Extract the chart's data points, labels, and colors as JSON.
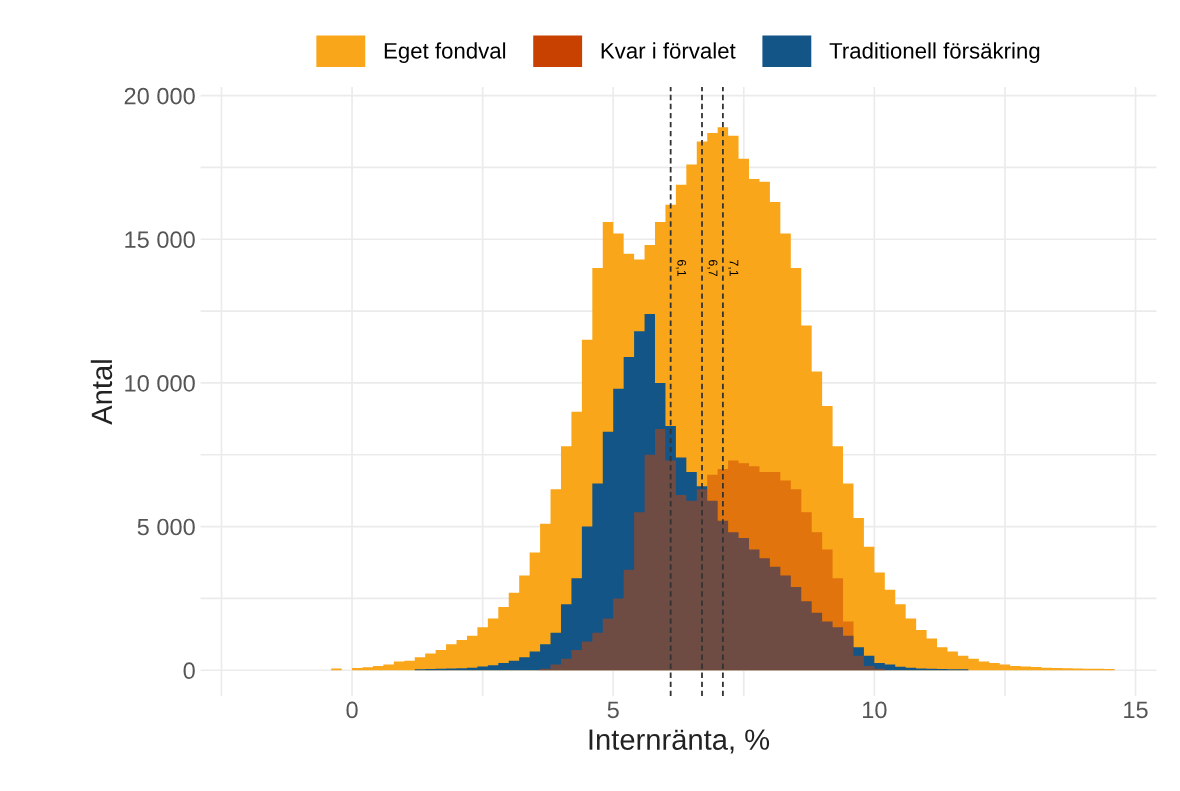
{
  "chart_data": {
    "type": "histogram",
    "xlabel": "Internränta, %",
    "ylabel": "Antal",
    "bins": [
      -0.4,
      -0.2,
      0.0,
      0.2,
      0.4,
      0.6,
      0.8,
      1.0,
      1.2,
      1.4,
      1.6,
      1.8,
      2.0,
      2.2,
      2.4,
      2.6,
      2.8,
      3.0,
      3.2,
      3.4,
      3.6,
      3.8,
      4.0,
      4.2,
      4.4,
      4.6,
      4.8,
      5.0,
      5.2,
      5.4,
      5.6,
      5.8,
      6.0,
      6.2,
      6.4,
      6.6,
      6.8,
      7.0,
      7.2,
      7.4,
      7.6,
      7.8,
      8.0,
      8.2,
      8.4,
      8.6,
      8.8,
      9.0,
      9.2,
      9.4,
      9.6,
      9.8,
      10.0,
      10.2,
      10.4,
      10.6,
      10.8,
      11.0,
      11.2,
      11.4,
      11.6,
      11.8,
      12.0,
      12.2,
      12.4,
      12.6,
      12.8,
      13.0,
      13.2,
      13.4,
      13.6,
      13.8,
      14.0,
      14.2,
      14.4,
      14.6
    ],
    "series": [
      {
        "name": "Eget fondval",
        "color": "#f9a61a",
        "values": [
          60,
          0,
          80,
          100,
          150,
          200,
          300,
          330,
          450,
          580,
          700,
          900,
          1050,
          1200,
          1500,
          1800,
          2200,
          2700,
          3300,
          4100,
          5100,
          6300,
          7800,
          9000,
          11500,
          14000,
          15600,
          15200,
          14500,
          14300,
          14800,
          15600,
          16200,
          16900,
          17600,
          18400,
          18700,
          18900,
          18600,
          17800,
          17100,
          17000,
          16300,
          15200,
          14000,
          12000,
          10400,
          9200,
          7800,
          6500,
          5300,
          4300,
          3400,
          2800,
          2300,
          1800,
          1400,
          1100,
          800,
          650,
          500,
          400,
          300,
          250,
          200,
          150,
          130,
          110,
          90,
          80,
          70,
          60,
          50,
          50,
          40
        ]
      },
      {
        "name": "Kvar i förvalet",
        "color": "#c94100",
        "values": [
          0,
          0,
          0,
          0,
          0,
          0,
          0,
          0,
          0,
          0,
          0,
          0,
          0,
          0,
          0,
          0,
          0,
          0,
          0,
          0,
          50,
          200,
          400,
          700,
          1000,
          1300,
          1800,
          2500,
          3500,
          5500,
          7500,
          8400,
          7300,
          6100,
          5900,
          6300,
          6800,
          7000,
          7300,
          7200,
          7100,
          6900,
          6900,
          6600,
          6300,
          5500,
          4800,
          4200,
          3200,
          1700,
          500,
          150,
          50,
          0,
          0,
          0,
          0,
          0,
          0,
          0,
          0,
          0,
          0,
          0,
          0,
          0,
          0,
          0,
          0,
          0,
          0,
          0,
          0,
          0,
          0
        ]
      },
      {
        "name": "Traditionell försäkring",
        "color": "#135587",
        "values": [
          0,
          0,
          0,
          0,
          0,
          0,
          0,
          0,
          30,
          40,
          50,
          60,
          70,
          90,
          130,
          170,
          250,
          330,
          450,
          650,
          900,
          1300,
          2300,
          3200,
          5000,
          6500,
          8300,
          9800,
          10900,
          11800,
          12400,
          10000,
          8500,
          7400,
          6900,
          6400,
          5900,
          5200,
          4800,
          4600,
          4200,
          3900,
          3600,
          3300,
          2900,
          2400,
          2000,
          1700,
          1500,
          1200,
          800,
          500,
          250,
          200,
          120,
          90,
          60,
          50,
          40,
          30,
          30,
          0,
          0,
          0,
          0,
          0,
          0,
          0,
          0,
          0,
          0,
          0,
          0,
          0,
          0
        ]
      }
    ],
    "ref_lines": [
      {
        "axis": "x",
        "value": 6.1,
        "label": "6,1",
        "color": "#333333",
        "line_style": "dashed"
      },
      {
        "axis": "x",
        "value": 6.7,
        "label": "6,7",
        "color": "#333333",
        "line_style": "dashed"
      },
      {
        "axis": "x",
        "value": 7.1,
        "label": "7,1",
        "color": "#333333",
        "line_style": "dashed"
      }
    ],
    "xlim": [
      -2.9,
      15.4
    ],
    "xticks": [
      {
        "value": -2.5,
        "label": null
      },
      0,
      {
        "value": 2.5,
        "label": null
      },
      5,
      {
        "value": 7.5,
        "label": null
      },
      10,
      {
        "value": 12.5,
        "label": null
      },
      15
    ],
    "ylim": [
      -900,
      20300
    ],
    "yticks": [
      0,
      {
        "value": 2500,
        "label": null
      },
      {
        "value": 5000,
        "label": "5 000"
      },
      {
        "value": 7500,
        "label": null
      },
      {
        "value": 10000,
        "label": "10 000"
      },
      {
        "value": 12500,
        "label": null
      },
      {
        "value": 15000,
        "label": "15 000"
      },
      {
        "value": 17500,
        "label": null
      },
      {
        "value": 20000,
        "label": "20 000"
      }
    ],
    "grid": true,
    "legend": "top"
  }
}
